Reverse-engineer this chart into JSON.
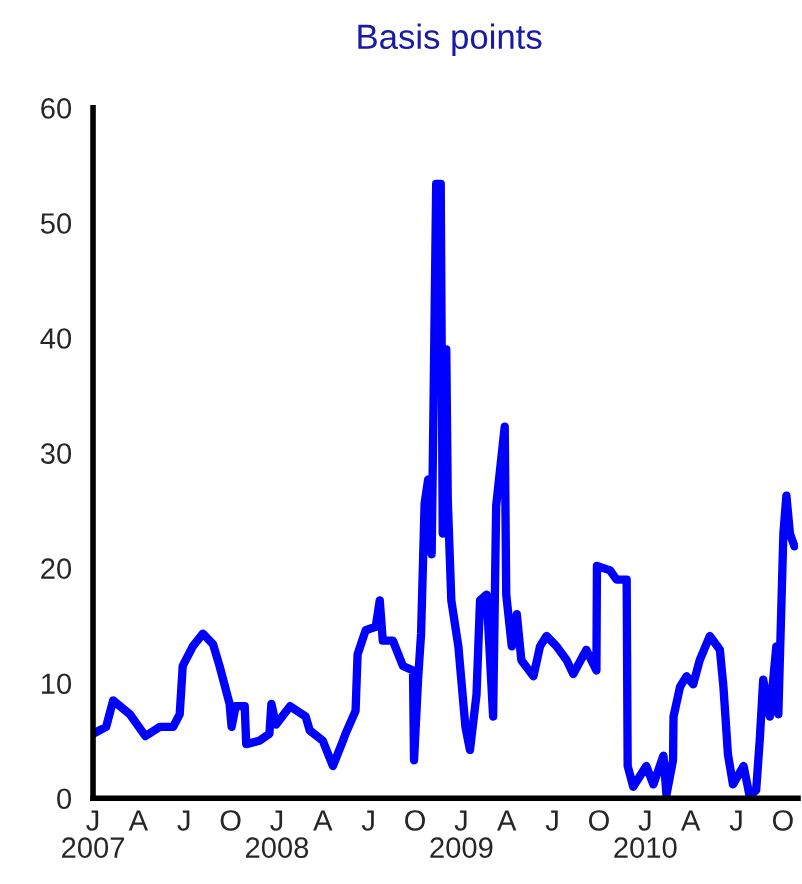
{
  "chart_data": {
    "type": "line",
    "title": "Basis points",
    "xlim": [
      "2007-01-01",
      "2010-10-31"
    ],
    "ylim": [
      0,
      60
    ],
    "yticks": [
      0,
      10,
      20,
      30,
      40,
      50,
      60
    ],
    "xticks": [
      {
        "value": "2007-01-01",
        "label": "J\n2007"
      },
      {
        "value": "2007-04-01",
        "label": "A"
      },
      {
        "value": "2007-07-01",
        "label": "J"
      },
      {
        "value": "2007-10-01",
        "label": "O"
      },
      {
        "value": "2008-01-01",
        "label": "J\n2008"
      },
      {
        "value": "2008-04-01",
        "label": "A"
      },
      {
        "value": "2008-07-01",
        "label": "J"
      },
      {
        "value": "2008-10-01",
        "label": "O"
      },
      {
        "value": "2009-01-01",
        "label": "J\n2009"
      },
      {
        "value": "2009-04-01",
        "label": "A"
      },
      {
        "value": "2009-07-01",
        "label": "J"
      },
      {
        "value": "2009-10-01",
        "label": "O"
      },
      {
        "value": "2010-01-01",
        "label": "J\n2010"
      },
      {
        "value": "2010-04-01",
        "label": "A"
      },
      {
        "value": "2010-07-01",
        "label": "J"
      },
      {
        "value": "2010-10-01",
        "label": "O"
      }
    ],
    "marker": "none",
    "line_style": "solid",
    "series": [
      {
        "color": "#0000ff",
        "x": [
          "2007-01-01",
          "2007-01-27",
          "2007-02-10",
          "2007-03-15",
          "2007-04-15",
          "2007-05-13",
          "2007-06-09",
          "2007-06-22",
          "2007-06-28",
          "2007-07-18",
          "2007-08-07",
          "2007-08-27",
          "2007-09-09",
          "2007-09-29",
          "2007-10-03",
          "2007-10-11",
          "2007-10-29",
          "2007-11-01",
          "2007-11-27",
          "2007-12-17",
          "2007-12-21",
          "2007-12-30",
          "2008-01-27",
          "2008-02-27",
          "2008-03-06",
          "2008-04-01",
          "2008-04-21",
          "2008-05-11",
          "2008-05-16",
          "2008-06-05",
          "2008-06-09",
          "2008-06-25",
          "2008-07-15",
          "2008-07-23",
          "2008-07-29",
          "2008-08-18",
          "2008-09-07",
          "2008-09-27",
          "2008-09-29",
          "2008-10-07",
          "2008-10-13",
          "2008-10-20",
          "2008-10-27",
          "2008-11-03",
          "2008-11-06",
          "2008-11-12",
          "2008-11-21",
          "2008-11-25",
          "2008-12-02",
          "2008-12-05",
          "2008-12-12",
          "2008-12-26",
          "2009-01-09",
          "2009-01-18",
          "2009-01-31",
          "2009-02-07",
          "2009-02-20",
          "2009-03-05",
          "2009-03-11",
          "2009-03-28",
          "2009-03-31",
          "2009-04-11",
          "2009-04-21",
          "2009-04-30",
          "2009-05-24",
          "2009-06-06",
          "2009-06-19",
          "2009-07-09",
          "2009-07-29",
          "2009-08-11",
          "2009-09-06",
          "2009-09-26",
          "2009-09-27",
          "2009-10-23",
          "2009-11-05",
          "2009-11-25",
          "2009-11-27",
          "2009-12-08",
          "2010-01-03",
          "2010-01-17",
          "2010-02-06",
          "2010-02-12",
          "2010-02-25",
          "2010-02-26",
          "2010-03-11",
          "2010-03-24",
          "2010-04-06",
          "2010-04-19",
          "2010-05-09",
          "2010-05-29",
          "2010-06-05",
          "2010-06-14",
          "2010-06-24",
          "2010-07-15",
          "2010-07-27",
          "2010-08-09",
          "2010-08-16",
          "2010-08-23",
          "2010-09-05",
          "2010-09-18",
          "2010-09-22",
          "2010-10-02",
          "2010-10-08",
          "2010-10-15",
          "2010-10-24"
        ],
        "values": [
          5.6,
          6.2,
          8.5,
          7.3,
          5.4,
          6.2,
          6.2,
          7.3,
          11.5,
          13.2,
          14.3,
          13.4,
          11.5,
          8.2,
          6.2,
          8.0,
          8.0,
          4.7,
          5.0,
          5.6,
          8.2,
          6.4,
          8.0,
          7.1,
          5.9,
          5.0,
          2.8,
          5.0,
          5.6,
          7.6,
          12.5,
          14.6,
          14.9,
          17.2,
          13.7,
          13.7,
          11.5,
          11.1,
          3.3,
          10.3,
          14.3,
          25.6,
          27.7,
          21.2,
          31.7,
          53.4,
          53.4,
          23.0,
          39.0,
          25.9,
          17.2,
          13.2,
          6.2,
          4.2,
          9.0,
          17.2,
          17.7,
          7.1,
          25.4,
          32.3,
          17.7,
          13.2,
          16.0,
          12.0,
          10.6,
          13.2,
          14.1,
          13.2,
          12.0,
          10.8,
          12.9,
          11.1,
          20.2,
          19.8,
          19.0,
          19.0,
          2.8,
          1.0,
          2.8,
          1.2,
          3.7,
          0.3,
          3.3,
          7.1,
          9.7,
          10.6,
          9.9,
          12.0,
          14.1,
          12.9,
          9.7,
          3.8,
          1.2,
          2.8,
          0.2,
          0.7,
          5.0,
          10.3,
          7.1,
          13.2,
          7.3,
          23.0,
          26.3,
          23.0,
          21.9
        ]
      }
    ]
  }
}
